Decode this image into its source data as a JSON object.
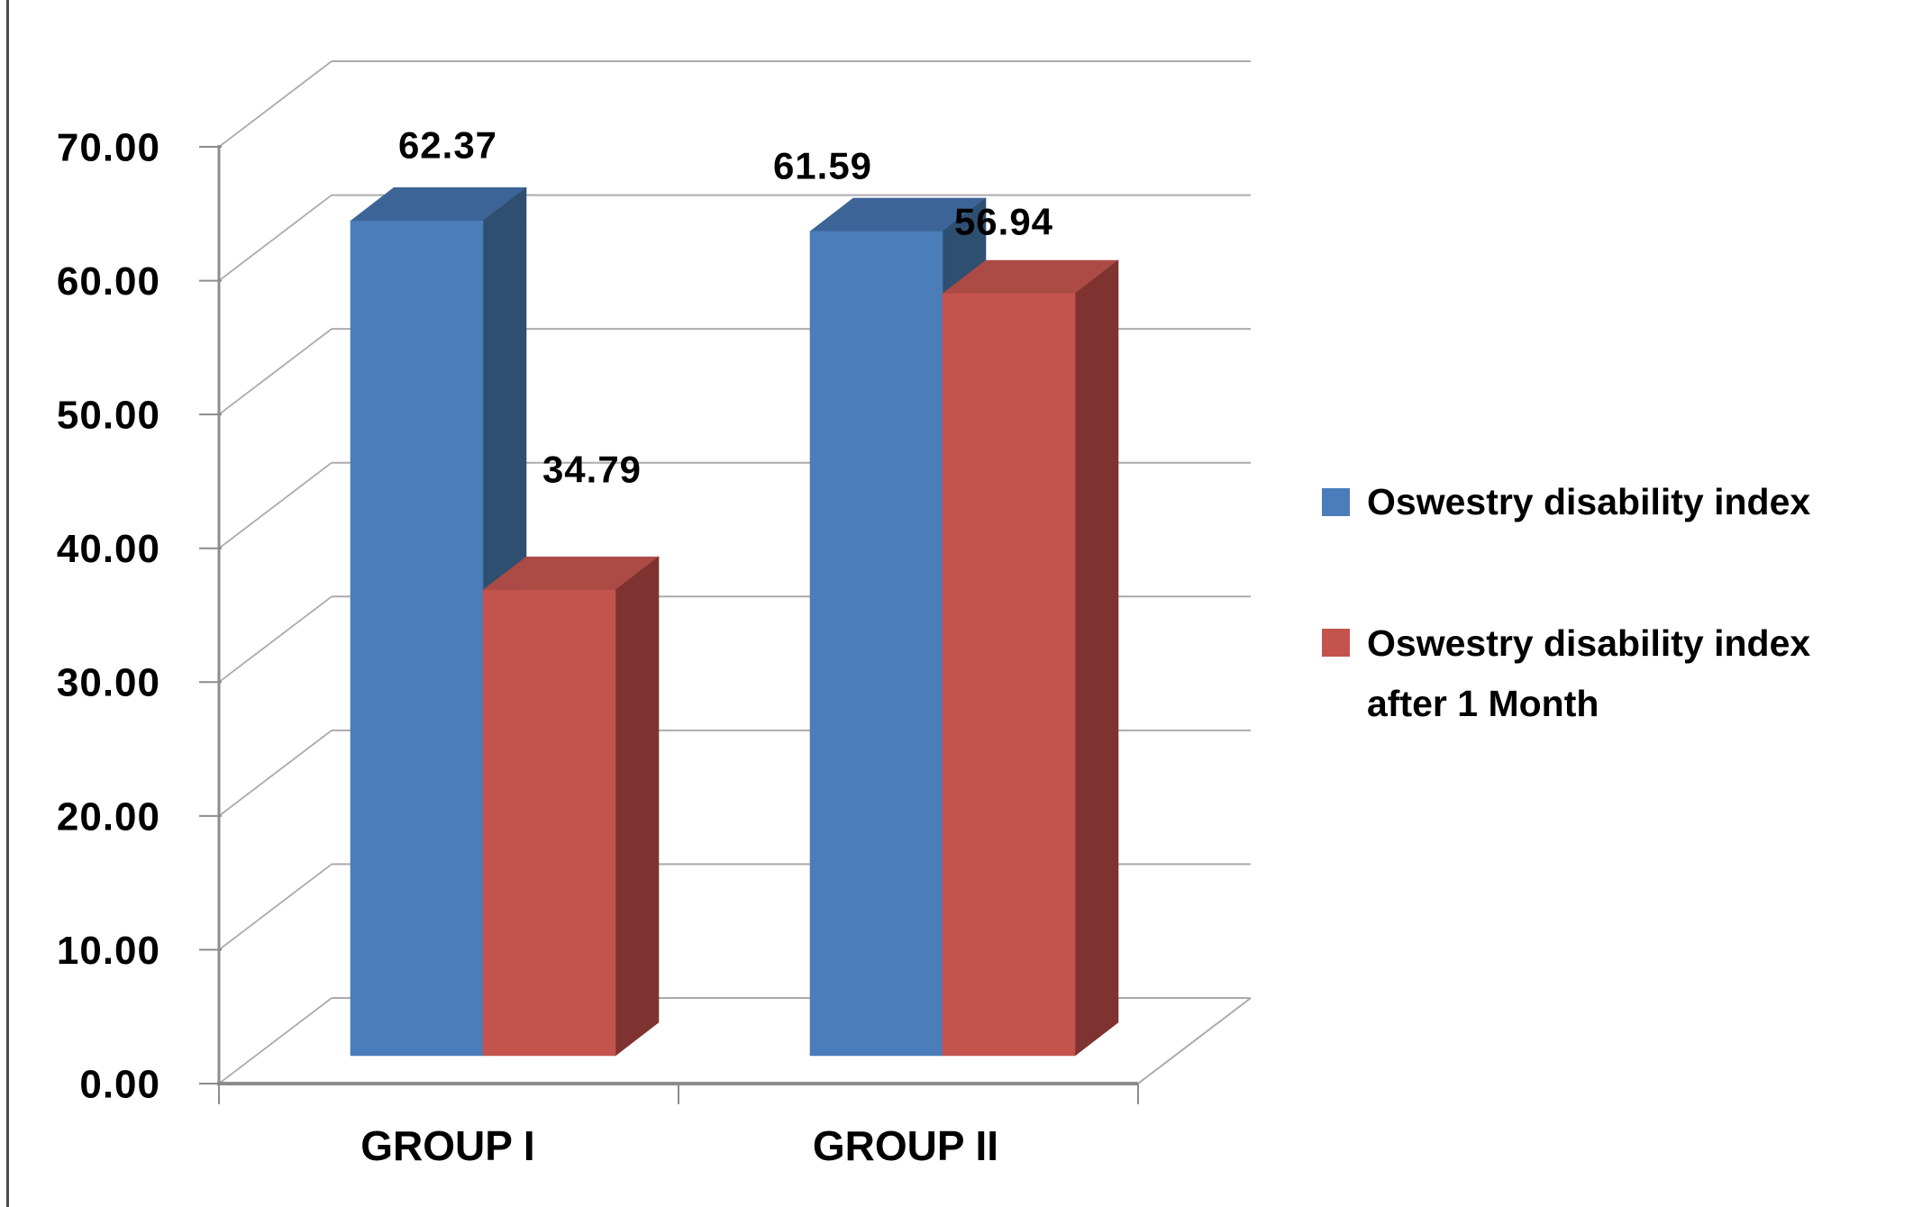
{
  "page": {
    "background": "#ffffff",
    "left_border_color": "#4d4d4d"
  },
  "chart_data": {
    "type": "bar",
    "projection": "3d-clustered-column",
    "title": "",
    "xlabel": "",
    "ylabel": "",
    "grid": true,
    "categories": [
      "GROUP I",
      "GROUP II"
    ],
    "series": [
      {
        "name": "Oswestry disability index",
        "color": "#4B7DBA",
        "color_top": "#3C6497",
        "color_side": "#2F4F70",
        "values": [
          62.37,
          61.59
        ],
        "data_labels": [
          "62.37",
          "61.59"
        ]
      },
      {
        "name": "Oswestry disability index after 1 Month",
        "color": "#C4534E",
        "color_top": "#AC4A45",
        "color_side": "#7E3331",
        "values": [
          34.79,
          56.94
        ],
        "data_labels": [
          "34.79",
          "56.94"
        ]
      }
    ],
    "y_axis": {
      "min": 0,
      "max": 70,
      "step": 10,
      "tick_labels": [
        "0.00",
        "10.00",
        "20.00",
        "30.00",
        "40.00",
        "50.00",
        "60.00",
        "70.00"
      ]
    },
    "ylim": [
      0,
      70
    ],
    "legend": {
      "position": "right",
      "items": [
        {
          "label": "Oswestry disability index",
          "color": "#4B7DBA"
        },
        {
          "label": "Oswestry disability index after 1 Month",
          "label_lines": [
            "Oswestry disability index",
            "after 1 Month"
          ],
          "color": "#C4534E"
        }
      ]
    },
    "colors": {
      "gridline": "#ABABAB",
      "axis_line": "#8C8C8C",
      "text": "#000000"
    }
  }
}
